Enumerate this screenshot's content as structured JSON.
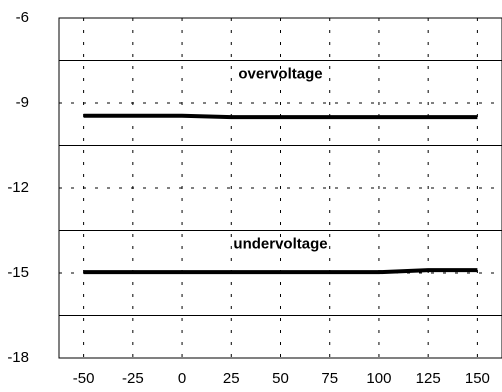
{
  "chart_data": {
    "type": "line",
    "title": "",
    "xlabel": "",
    "ylabel": "",
    "xlim": [
      -62.5,
      162.5
    ],
    "ylim": [
      -18,
      -6
    ],
    "x_ticks": [
      -50,
      -25,
      0,
      25,
      50,
      75,
      100,
      125,
      150
    ],
    "y_ticks": [
      -6,
      -9,
      -12,
      -15,
      -18
    ],
    "x_tick_labels": [
      "-50",
      "-25",
      "0",
      "25",
      "50",
      "75",
      "100",
      "125",
      "150"
    ],
    "y_tick_labels": [
      "-6",
      "-9",
      "-12",
      "-15",
      "-18"
    ],
    "grid": "dashed",
    "h_lines": [
      -7.5,
      -10.5,
      -13.5,
      -16.5
    ],
    "series": [
      {
        "x": [
          -50,
          -25,
          0,
          25,
          50,
          75,
          100,
          125,
          150
        ],
        "y": [
          -9.45,
          -9.45,
          -9.45,
          -9.5,
          -9.5,
          -9.5,
          -9.5,
          -9.5,
          -9.5
        ]
      },
      {
        "x": [
          -50,
          -25,
          0,
          25,
          50,
          75,
          100,
          125,
          150
        ],
        "y": [
          -14.97,
          -14.97,
          -14.97,
          -14.97,
          -14.97,
          -14.97,
          -14.97,
          -14.9,
          -14.9
        ]
      }
    ],
    "annotations": [
      {
        "text": "overvoltage",
        "x": 50,
        "y": -8.0
      },
      {
        "text": "undervoltage",
        "x": 50,
        "y": -14.0
      }
    ],
    "line_color": "#000000"
  }
}
